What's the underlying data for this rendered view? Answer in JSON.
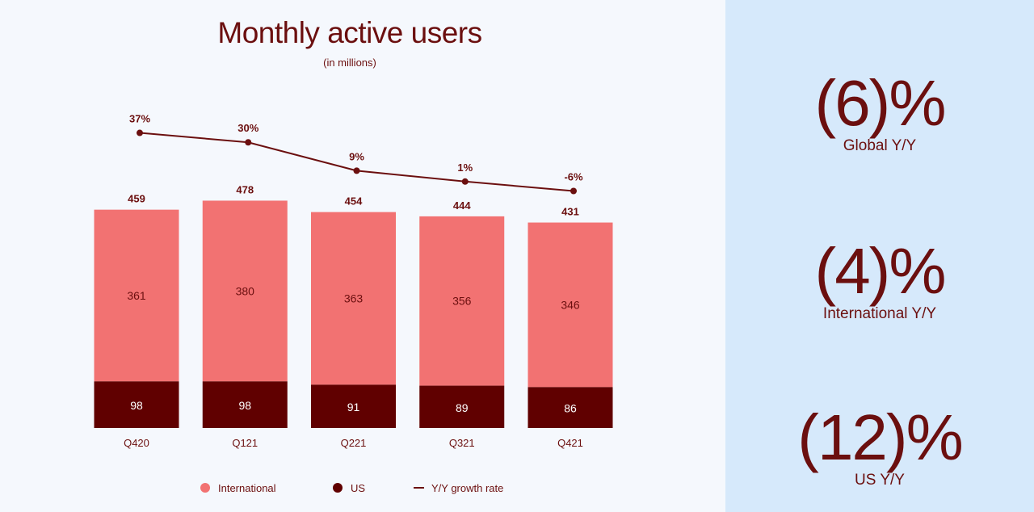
{
  "colors": {
    "international": "#f27272",
    "us": "#600000",
    "line": "#6b0f0f",
    "text": "#6b0f0f",
    "side_bg": "#d6e9fb"
  },
  "chart_data": {
    "type": "bar",
    "stacked": true,
    "title": "Monthly active users",
    "subtitle": "(in millions)",
    "categories": [
      "Q420",
      "Q121",
      "Q221",
      "Q321",
      "Q421"
    ],
    "series": [
      {
        "name": "International",
        "values": [
          361,
          380,
          363,
          356,
          346
        ]
      },
      {
        "name": "US",
        "values": [
          98,
          98,
          91,
          89,
          86
        ]
      }
    ],
    "totals": [
      459,
      478,
      454,
      444,
      431
    ],
    "line_series": {
      "name": "Y/Y growth rate",
      "values": [
        37,
        30,
        9,
        1,
        -6
      ],
      "labels": [
        "37%",
        "30%",
        "9%",
        "1%",
        "-6%"
      ]
    },
    "legend": [
      "International",
      "US",
      "Y/Y growth rate"
    ],
    "legend_position": "bottom",
    "grid": false
  },
  "stats": [
    {
      "value": "(6)%",
      "label": "Global Y/Y"
    },
    {
      "value": "(4)%",
      "label": "International Y/Y"
    },
    {
      "value": "(12)%",
      "label": "US Y/Y"
    }
  ]
}
